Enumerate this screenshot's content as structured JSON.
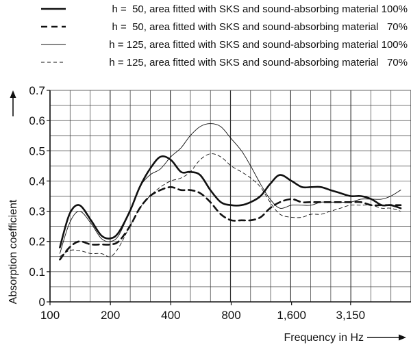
{
  "chart_data": {
    "type": "line",
    "title": "",
    "xlabel": "Frequency in Hz",
    "ylabel": "Absorption coefficient",
    "x_scale": "log2",
    "xlim": [
      100,
      6300
    ],
    "ylim": [
      0,
      0.7
    ],
    "x_ticks": [
      100,
      200,
      400,
      800,
      1600,
      3150
    ],
    "x_tick_labels": [
      "100",
      "200",
      "400",
      "800",
      "1,600",
      "3,150"
    ],
    "y_ticks": [
      0,
      0.1,
      0.2,
      0.3,
      0.4,
      0.5,
      0.6,
      0.7
    ],
    "y_tick_labels": [
      "0",
      "0.1",
      "0.2",
      "0.3",
      "0.4",
      "0.5",
      "0.6",
      "0.7"
    ],
    "grid": true,
    "legend_position": "top",
    "series": [
      {
        "name": "h =  50, area fitted with SKS and sound-absorbing material 100%",
        "line_style": "thick-solid",
        "color": "#111111",
        "x": [
          112,
          125,
          140,
          160,
          180,
          200,
          220,
          250,
          280,
          315,
          355,
          400,
          450,
          500,
          560,
          630,
          710,
          800,
          900,
          1000,
          1120,
          1250,
          1400,
          1600,
          1800,
          2000,
          2240,
          2500,
          2800,
          3150,
          3550,
          4000,
          4500,
          5000,
          5600
        ],
        "y": [
          0.18,
          0.29,
          0.32,
          0.27,
          0.22,
          0.21,
          0.23,
          0.3,
          0.38,
          0.44,
          0.48,
          0.47,
          0.43,
          0.43,
          0.42,
          0.37,
          0.33,
          0.32,
          0.32,
          0.33,
          0.35,
          0.39,
          0.42,
          0.4,
          0.38,
          0.38,
          0.38,
          0.37,
          0.36,
          0.35,
          0.35,
          0.34,
          0.32,
          0.32,
          0.31
        ]
      },
      {
        "name": "h =  50, area fitted with SKS and sound-absorbing material   70%",
        "line_style": "thick-dashed",
        "color": "#111111",
        "x": [
          112,
          125,
          140,
          160,
          180,
          200,
          220,
          250,
          280,
          315,
          355,
          400,
          450,
          500,
          560,
          630,
          710,
          800,
          900,
          1000,
          1120,
          1250,
          1400,
          1600,
          1800,
          2000,
          2240,
          2500,
          2800,
          3150,
          3550,
          4000,
          4500,
          5000,
          5600
        ],
        "y": [
          0.14,
          0.18,
          0.2,
          0.19,
          0.19,
          0.19,
          0.2,
          0.25,
          0.31,
          0.35,
          0.37,
          0.38,
          0.37,
          0.37,
          0.36,
          0.33,
          0.29,
          0.27,
          0.27,
          0.27,
          0.28,
          0.31,
          0.33,
          0.34,
          0.33,
          0.33,
          0.33,
          0.33,
          0.33,
          0.33,
          0.33,
          0.32,
          0.32,
          0.32,
          0.32
        ]
      },
      {
        "name": "h = 125, area fitted with SKS and sound-absorbing material 100%",
        "line_style": "thin-solid",
        "color": "#111111",
        "x": [
          112,
          125,
          140,
          160,
          180,
          200,
          220,
          250,
          280,
          315,
          355,
          400,
          450,
          500,
          560,
          630,
          710,
          800,
          900,
          1000,
          1120,
          1250,
          1400,
          1600,
          1800,
          2000,
          2240,
          2500,
          2800,
          3150,
          3550,
          4000,
          4500,
          5000,
          5600
        ],
        "y": [
          0.16,
          0.26,
          0.3,
          0.26,
          0.21,
          0.2,
          0.22,
          0.3,
          0.38,
          0.42,
          0.44,
          0.48,
          0.51,
          0.55,
          0.58,
          0.59,
          0.58,
          0.54,
          0.5,
          0.45,
          0.39,
          0.34,
          0.31,
          0.32,
          0.32,
          0.32,
          0.33,
          0.33,
          0.33,
          0.33,
          0.34,
          0.34,
          0.34,
          0.35,
          0.37
        ]
      },
      {
        "name": "h = 125, area fitted with SKS and sound-absorbing material   70%",
        "line_style": "thin-dashed",
        "color": "#111111",
        "x": [
          112,
          125,
          140,
          160,
          180,
          200,
          220,
          250,
          280,
          315,
          355,
          400,
          450,
          500,
          560,
          630,
          710,
          800,
          900,
          1000,
          1120,
          1250,
          1400,
          1600,
          1800,
          2000,
          2240,
          2500,
          2800,
          3150,
          3550,
          4000,
          4500,
          5000,
          5600
        ],
        "y": [
          0.15,
          0.17,
          0.17,
          0.16,
          0.16,
          0.15,
          0.18,
          0.25,
          0.31,
          0.35,
          0.38,
          0.4,
          0.41,
          0.43,
          0.47,
          0.49,
          0.48,
          0.45,
          0.43,
          0.41,
          0.38,
          0.33,
          0.29,
          0.28,
          0.28,
          0.29,
          0.29,
          0.3,
          0.31,
          0.32,
          0.32,
          0.32,
          0.31,
          0.31,
          0.3
        ]
      }
    ]
  }
}
